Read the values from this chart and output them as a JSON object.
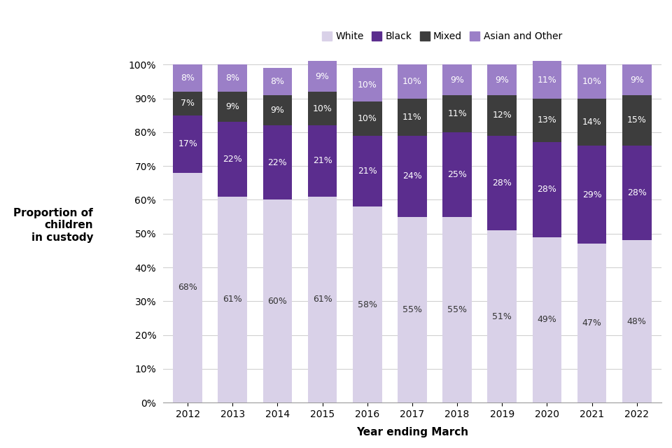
{
  "years": [
    "2012",
    "2013",
    "2014",
    "2015",
    "2016",
    "2017",
    "2018",
    "2019",
    "2020",
    "2021",
    "2022"
  ],
  "white": [
    68,
    61,
    60,
    61,
    58,
    55,
    55,
    51,
    49,
    47,
    48
  ],
  "black": [
    17,
    22,
    22,
    21,
    21,
    24,
    25,
    28,
    28,
    29,
    28
  ],
  "mixed": [
    7,
    9,
    9,
    10,
    10,
    11,
    11,
    12,
    13,
    14,
    15
  ],
  "asian_other": [
    8,
    8,
    8,
    9,
    10,
    10,
    9,
    9,
    11,
    10,
    9
  ],
  "white_color": "#d9d1e8",
  "black_color": "#5b2d8e",
  "mixed_color": "#3d3d3d",
  "asian_color": "#9b7fc7",
  "white_label": "White",
  "black_label": "Black",
  "mixed_label": "Mixed",
  "asian_label": "Asian and Other",
  "xlabel": "Year ending March",
  "ylabel": "Proportion of\nchildren\nin custody",
  "yticks": [
    0,
    10,
    20,
    30,
    40,
    50,
    60,
    70,
    80,
    90,
    100
  ],
  "ytick_labels": [
    "0%",
    "10%",
    "20%",
    "30%",
    "40%",
    "50%",
    "60%",
    "70%",
    "80%",
    "90%",
    "100%"
  ],
  "white_text_color": "#333333",
  "segment_text_color": "#ffffff",
  "bar_width": 0.65
}
